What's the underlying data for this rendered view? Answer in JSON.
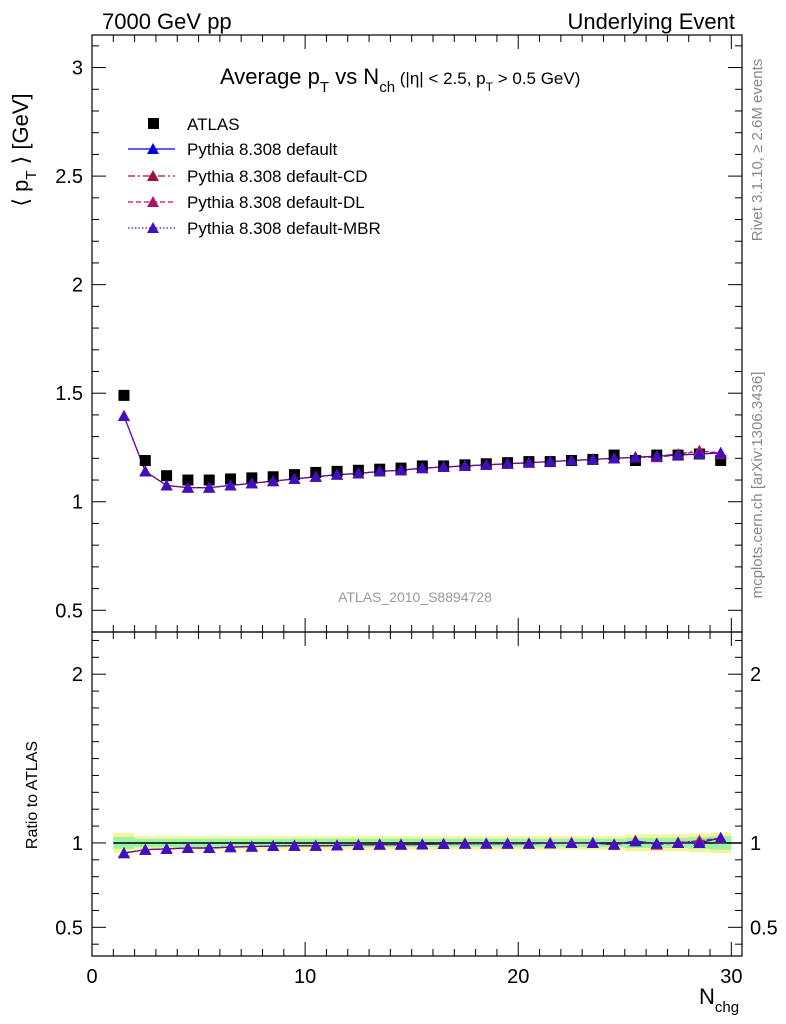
{
  "header": {
    "energy": "7000 GeV pp",
    "process": "Underlying Event"
  },
  "side_labels": {
    "rivet": "Rivet 3.1.10, ≥ 2.6M events",
    "mcplots": "mcplots.cern.ch [arXiv:1306.3436]"
  },
  "colors": {
    "atlas": "#000000",
    "default": "#0000e0",
    "default_cd": "#a01040",
    "default_dl": "#b0106a",
    "default_mbr": "#4010c0",
    "band_inner": "#98f5a8",
    "band_outer": "#f5f598"
  },
  "chart_data": [
    {
      "type": "scatter",
      "title": "Average p_T vs N_ch (|η| < 2.5, p_T > 0.5 GeV)",
      "ylabel": "⟨ p_T ⟩ [GeV]",
      "xlabel": "",
      "watermark": "ATLAS_2010_S8894728",
      "xlim": [
        0,
        30.5
      ],
      "ylim": [
        0.4,
        3.15
      ],
      "y_ticks": [
        0.5,
        1,
        1.5,
        2,
        2.5,
        3
      ],
      "y_tick_labels": [
        "0.5",
        "1",
        "1.5",
        "2",
        "2.5",
        "3"
      ],
      "legend_position": "top-left",
      "x": [
        1.5,
        2.5,
        3.5,
        4.5,
        5.5,
        6.5,
        7.5,
        8.5,
        9.5,
        10.5,
        11.5,
        12.5,
        13.5,
        14.5,
        15.5,
        16.5,
        17.5,
        18.5,
        19.5,
        20.5,
        21.5,
        22.5,
        23.5,
        24.5,
        25.5,
        26.5,
        27.5,
        28.5,
        29.5
      ],
      "series": [
        {
          "name": "ATLAS",
          "marker": "square",
          "line": "none",
          "color_key": "atlas",
          "values": [
            1.49,
            1.19,
            1.12,
            1.1,
            1.1,
            1.105,
            1.11,
            1.115,
            1.125,
            1.135,
            1.14,
            1.145,
            1.15,
            1.155,
            1.165,
            1.165,
            1.17,
            1.175,
            1.18,
            1.185,
            1.185,
            1.19,
            1.195,
            1.215,
            1.19,
            1.215,
            1.215,
            1.22,
            1.19
          ]
        },
        {
          "name": "Pythia 8.308 default",
          "marker": "triangle",
          "line": "solid",
          "color_key": "default",
          "values": [
            1.395,
            1.14,
            1.075,
            1.065,
            1.065,
            1.075,
            1.085,
            1.095,
            1.105,
            1.115,
            1.125,
            1.13,
            1.14,
            1.145,
            1.155,
            1.16,
            1.165,
            1.17,
            1.175,
            1.18,
            1.185,
            1.19,
            1.195,
            1.2,
            1.205,
            1.21,
            1.215,
            1.22,
            1.225
          ]
        },
        {
          "name": "Pythia 8.308 default-CD",
          "marker": "triangle",
          "line": "dashdot",
          "color_key": "default_cd",
          "values": [
            1.395,
            1.14,
            1.075,
            1.065,
            1.065,
            1.075,
            1.085,
            1.095,
            1.105,
            1.115,
            1.125,
            1.13,
            1.14,
            1.145,
            1.155,
            1.16,
            1.165,
            1.17,
            1.175,
            1.18,
            1.185,
            1.19,
            1.195,
            1.2,
            1.205,
            1.21,
            1.22,
            1.235,
            1.22
          ]
        },
        {
          "name": "Pythia 8.308 default-DL",
          "marker": "triangle",
          "line": "dashed",
          "color_key": "default_dl",
          "values": [
            1.395,
            1.14,
            1.075,
            1.065,
            1.065,
            1.075,
            1.085,
            1.095,
            1.105,
            1.115,
            1.125,
            1.13,
            1.14,
            1.145,
            1.155,
            1.16,
            1.165,
            1.17,
            1.175,
            1.18,
            1.185,
            1.19,
            1.195,
            1.2,
            1.205,
            1.205,
            1.215,
            1.235,
            1.225
          ]
        },
        {
          "name": "Pythia 8.308 default-MBR",
          "marker": "triangle",
          "line": "dotted",
          "color_key": "default_mbr",
          "values": [
            1.395,
            1.14,
            1.075,
            1.065,
            1.065,
            1.075,
            1.085,
            1.095,
            1.105,
            1.115,
            1.125,
            1.13,
            1.14,
            1.145,
            1.155,
            1.16,
            1.165,
            1.17,
            1.175,
            1.18,
            1.185,
            1.19,
            1.195,
            1.2,
            1.205,
            1.21,
            1.215,
            1.22,
            1.225
          ]
        }
      ]
    },
    {
      "type": "scatter",
      "ylabel": "Ratio to ATLAS",
      "xlabel": "N_chg",
      "xlim": [
        0,
        30.5
      ],
      "ylim": [
        0.33,
        2.25
      ],
      "x_ticks": [
        0,
        10,
        20,
        30
      ],
      "x_tick_labels": [
        "0",
        "10",
        "20",
        "30"
      ],
      "y_ticks": [
        0.5,
        1,
        2
      ],
      "y_tick_labels": [
        "0.5",
        "1",
        "2"
      ],
      "reference_line": 1,
      "band_inner_halfwidth": [
        0.035,
        0.025,
        0.025,
        0.025,
        0.025,
        0.025,
        0.025,
        0.025,
        0.025,
        0.025,
        0.025,
        0.025,
        0.025,
        0.025,
        0.025,
        0.025,
        0.025,
        0.025,
        0.025,
        0.025,
        0.025,
        0.025,
        0.025,
        0.025,
        0.03,
        0.03,
        0.03,
        0.035,
        0.04
      ],
      "band_outer_halfwidth": [
        0.06,
        0.04,
        0.04,
        0.04,
        0.04,
        0.04,
        0.04,
        0.04,
        0.04,
        0.04,
        0.04,
        0.04,
        0.04,
        0.04,
        0.04,
        0.04,
        0.04,
        0.04,
        0.04,
        0.04,
        0.04,
        0.04,
        0.04,
        0.04,
        0.05,
        0.05,
        0.05,
        0.055,
        0.06
      ],
      "x": [
        1.5,
        2.5,
        3.5,
        4.5,
        5.5,
        6.5,
        7.5,
        8.5,
        9.5,
        10.5,
        11.5,
        12.5,
        13.5,
        14.5,
        15.5,
        16.5,
        17.5,
        18.5,
        19.5,
        20.5,
        21.5,
        22.5,
        23.5,
        24.5,
        25.5,
        26.5,
        27.5,
        28.5,
        29.5
      ],
      "series": [
        {
          "name": "Pythia 8.308 default",
          "color_key": "default",
          "line": "solid",
          "values": [
            0.94,
            0.96,
            0.965,
            0.97,
            0.97,
            0.975,
            0.978,
            0.982,
            0.983,
            0.983,
            0.985,
            0.988,
            0.99,
            0.99,
            0.991,
            0.994,
            0.996,
            0.996,
            0.996,
            0.996,
            0.998,
            1.0,
            1.0,
            0.99,
            1.01,
            0.996,
            1.0,
            1.0,
            1.03
          ]
        },
        {
          "name": "Pythia 8.308 default-CD",
          "color_key": "default_cd",
          "line": "dashdot",
          "values": [
            0.94,
            0.96,
            0.965,
            0.97,
            0.97,
            0.975,
            0.978,
            0.982,
            0.983,
            0.983,
            0.985,
            0.988,
            0.99,
            0.99,
            0.991,
            0.994,
            0.996,
            0.996,
            0.996,
            0.996,
            0.998,
            1.0,
            1.0,
            0.99,
            1.013,
            0.996,
            1.003,
            1.013,
            1.025
          ]
        },
        {
          "name": "Pythia 8.308 default-DL",
          "color_key": "default_dl",
          "line": "dashed",
          "values": [
            0.94,
            0.96,
            0.965,
            0.97,
            0.97,
            0.975,
            0.978,
            0.982,
            0.983,
            0.983,
            0.985,
            0.988,
            0.99,
            0.99,
            0.991,
            0.994,
            0.996,
            0.996,
            0.996,
            0.996,
            0.998,
            1.0,
            1.0,
            0.99,
            1.013,
            0.99,
            1.0,
            1.013,
            1.03
          ]
        },
        {
          "name": "Pythia 8.308 default-MBR",
          "color_key": "default_mbr",
          "line": "dotted",
          "values": [
            0.94,
            0.96,
            0.965,
            0.97,
            0.97,
            0.975,
            0.978,
            0.982,
            0.983,
            0.983,
            0.985,
            0.988,
            0.99,
            0.99,
            0.991,
            0.994,
            0.996,
            0.996,
            0.996,
            0.996,
            0.998,
            1.0,
            1.0,
            0.99,
            1.01,
            0.996,
            1.0,
            1.0,
            1.03
          ]
        }
      ]
    }
  ]
}
